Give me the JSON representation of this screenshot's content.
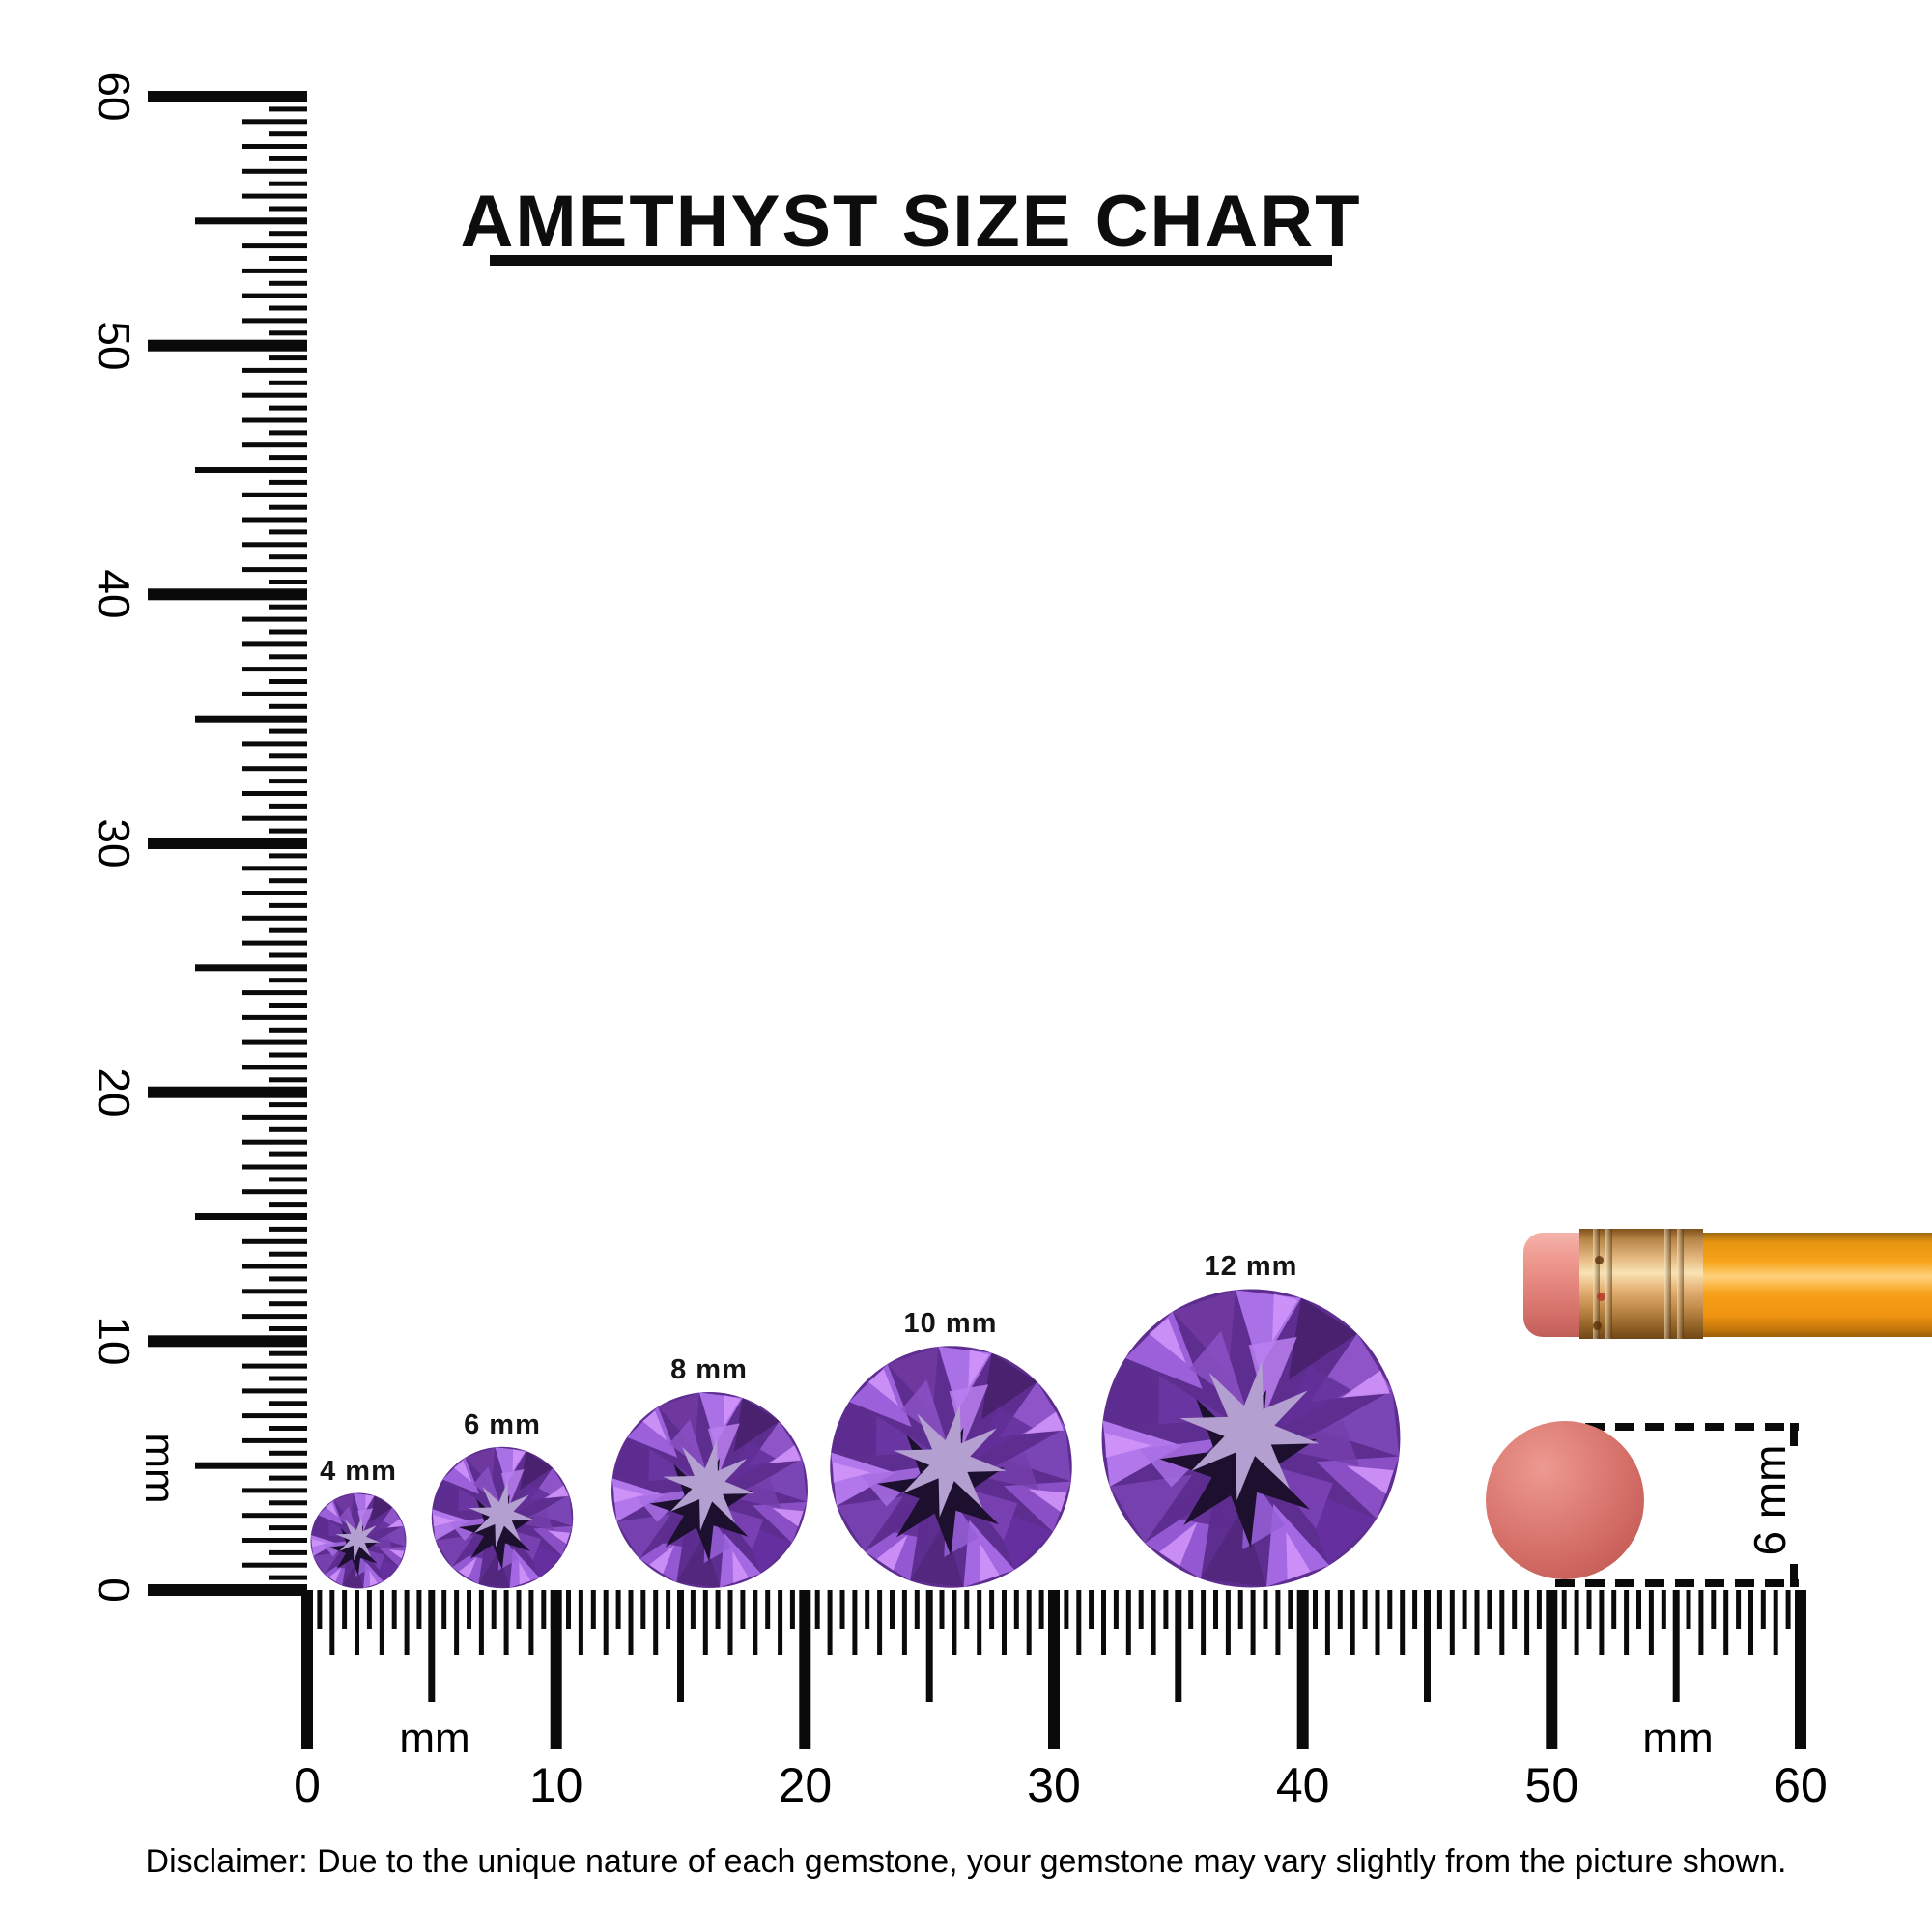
{
  "header": {
    "title": "AMETHYST SIZE CHART"
  },
  "gems": [
    {
      "label": "4 mm",
      "size_mm": 4
    },
    {
      "label": "6 mm",
      "size_mm": 6
    },
    {
      "label": "8 mm",
      "size_mm": 8
    },
    {
      "label": "10 mm",
      "size_mm": 10
    },
    {
      "label": "12 mm",
      "size_mm": 12
    }
  ],
  "vertical_ruler": {
    "unit": "mm",
    "tick_labels": [
      "60",
      "50",
      "40",
      "30",
      "20",
      "10",
      "0"
    ]
  },
  "horizontal_ruler": {
    "unit_left": "mm",
    "unit_right": "mm",
    "tick_labels": [
      "0",
      "10",
      "20",
      "30",
      "40",
      "50",
      "60"
    ]
  },
  "reference_objects": {
    "pencil": "pencil-with-eraser",
    "disc_dimension_label": "6 mm"
  },
  "footer": {
    "disclaimer": "Disclaimer: Due to the unique nature of each gemstone, your gemstone may vary slightly from the picture shown."
  },
  "colors": {
    "ink": "#0d0d0d",
    "gem_primary": "#7b43b6",
    "gem_light": "#b377ec",
    "gem_dark": "#1d0f2e",
    "gem_star": "#b3a0d0",
    "pencil_body_orange": "#f8a51c",
    "ferrule_gold": "#e7bc85",
    "eraser_pink": "#e2827a",
    "disc_red": "#d26c65"
  }
}
